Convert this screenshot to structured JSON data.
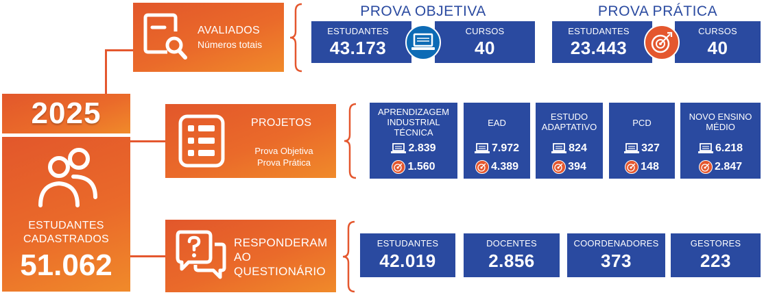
{
  "year": "2025",
  "registered": {
    "label_line1": "ESTUDANTES",
    "label_line2": "CADASTRADOS",
    "value": "51.062"
  },
  "avaliados": {
    "title": "AVALIADOS",
    "subtitle": "Números totais"
  },
  "projetos": {
    "title": "PROJETOS",
    "sub1": "Prova Objetiva",
    "sub2": "Prova Prática"
  },
  "questionario": {
    "line1": "RESPONDERAM",
    "line2": "AO",
    "line3": "QUESTIONÁRIO"
  },
  "prova_objetiva": {
    "header": "PROVA OBJETIVA",
    "estudantes_label": "ESTUDANTES",
    "estudantes_value": "43.173",
    "cursos_label": "CURSOS",
    "cursos_value": "40"
  },
  "prova_pratica": {
    "header": "PROVA PRÁTICA",
    "estudantes_label": "ESTUDANTES",
    "estudantes_value": "23.443",
    "cursos_label": "CURSOS",
    "cursos_value": "40"
  },
  "projects": [
    {
      "title_line1": "APRENDIZAGEM",
      "title_line2": "INDUSTRIAL",
      "title_line3": "TÉCNICA",
      "objetiva": "2.839",
      "pratica": "1.560"
    },
    {
      "title_line1": "EAD",
      "title_line2": "",
      "title_line3": "",
      "objetiva": "7.972",
      "pratica": "4.389"
    },
    {
      "title_line1": "ESTUDO",
      "title_line2": "ADAPTATIVO",
      "title_line3": "",
      "objetiva": "824",
      "pratica": "394"
    },
    {
      "title_line1": "PCD",
      "title_line2": "",
      "title_line3": "",
      "objetiva": "327",
      "pratica": "148"
    },
    {
      "title_line1": "NOVO ENSINO",
      "title_line2": "MÉDIO",
      "title_line3": "",
      "objetiva": "6.218",
      "pratica": "2.847"
    }
  ],
  "respondents": [
    {
      "label": "ESTUDANTES",
      "value": "42.019"
    },
    {
      "label": "DOCENTES",
      "value": "2.856"
    },
    {
      "label": "COORDENADORES",
      "value": "373"
    },
    {
      "label": "GESTORES",
      "value": "223"
    }
  ],
  "colors": {
    "orange": "#e8602c",
    "blue": "#2a4aa0",
    "line": "#e4572e"
  },
  "icons": {
    "registered": "people-icon",
    "avaliados": "document-search-icon",
    "projetos": "checklist-icon",
    "questionario": "question-chat-icon",
    "objetiva": "laptop-icon",
    "pratica": "target-icon"
  }
}
